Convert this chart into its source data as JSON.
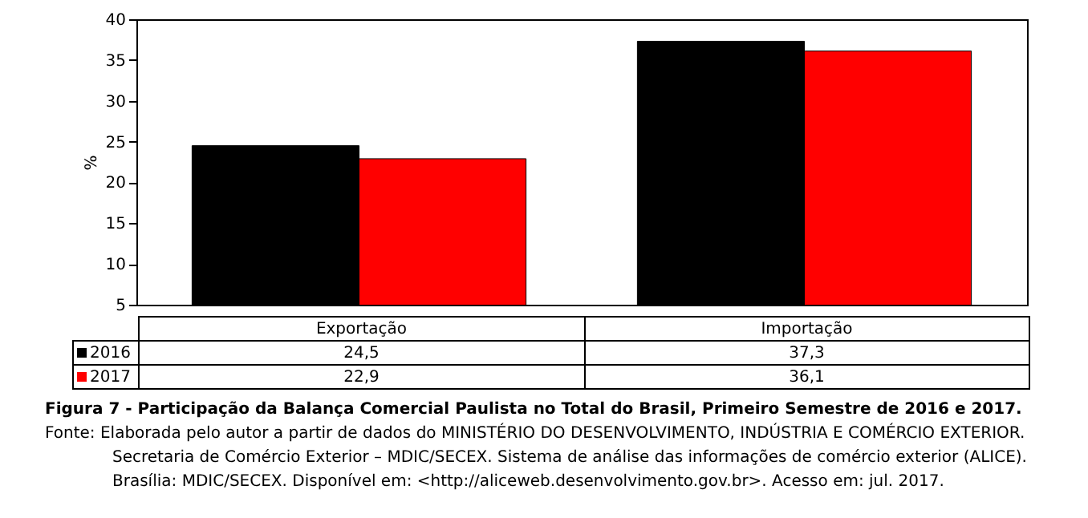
{
  "chart_data": {
    "type": "bar",
    "ylabel": "%",
    "categories": [
      "Exportação",
      "Importação"
    ],
    "series": [
      {
        "name": "2016",
        "color": "#000000",
        "values": [
          24.5,
          37.3
        ],
        "value_labels": [
          "24,5",
          "37,3"
        ]
      },
      {
        "name": "2017",
        "color": "#ff0000",
        "values": [
          22.9,
          36.1
        ],
        "value_labels": [
          "22,9",
          "36,1"
        ]
      }
    ],
    "ylim": [
      5,
      40
    ],
    "yticks": [
      5,
      10,
      15,
      20,
      25,
      30,
      35,
      40
    ],
    "legend": "bottom left",
    "tick_labels": "y",
    "annotations": [
      "Figura 7 - Participação da Balança Comercial Paulista no Total do Brasil, Primeiro Semestre de 2016 e 2017.",
      "Fonte: Elaborada pelo autor a partir de dados do MINISTÉRIO DO DESENVOLVIMENTO, INDÚSTRIA E COMÉRCIO EXTERIOR. Secretaria de Comércio Exterior – MDIC/SECEX. Sistema de análise das informações de comércio exterior (ALICE). Brasília: MDIC/SECEX. Disponível em: <http://aliceweb.desenvolvimento.gov.br>. Acesso em: jul. 2017."
    ]
  }
}
